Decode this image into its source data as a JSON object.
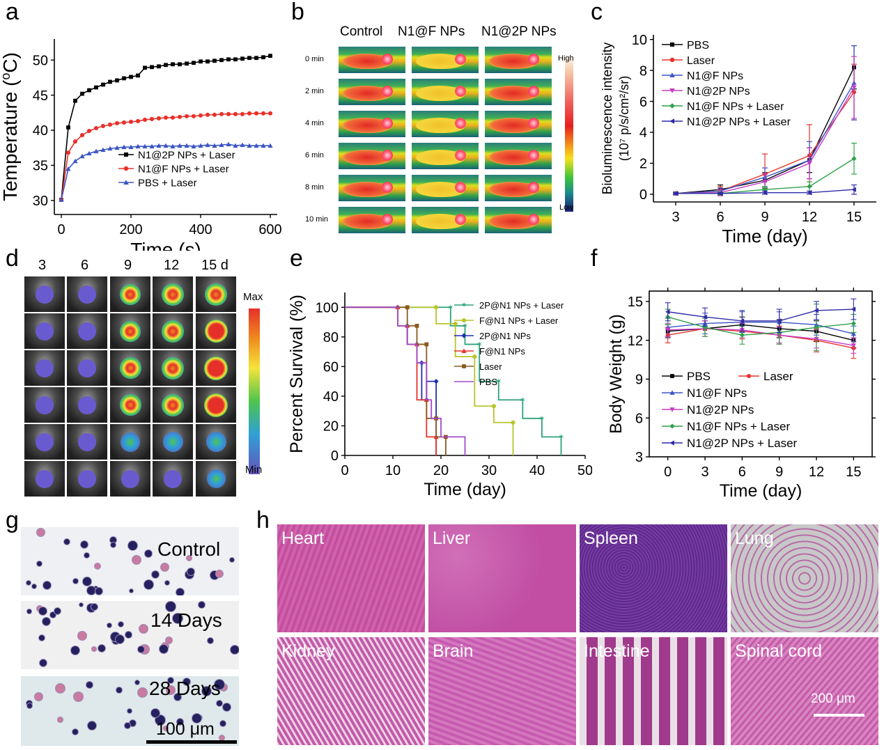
{
  "panel_letters": {
    "a": "a",
    "b": "b",
    "c": "c",
    "d": "d",
    "e": "e",
    "f": "f",
    "g": "g",
    "h": "h"
  },
  "colors": {
    "black": "#000000",
    "red": "#e8312a",
    "blue": "#3b55c5",
    "magenta": "#c43cc4",
    "green": "#2ea24a",
    "navy": "#2e2aa8",
    "brown": "#8a5a1e",
    "purple": "#a24ac8",
    "yellowgreen": "#b8c52a",
    "teal": "#2aa37a",
    "royal": "#1f2fb8",
    "he_pink": "#c65aa8"
  },
  "chart_data": [
    {
      "id": "a",
      "type": "line",
      "xlabel": "Time (s)",
      "ylabel": "Temperature (°C)",
      "xlim": [
        -20,
        620
      ],
      "ylim": [
        28,
        53
      ],
      "xticks": [
        0,
        200,
        400,
        600
      ],
      "yticks": [
        30,
        35,
        40,
        45,
        50
      ],
      "legend": "bottom-right",
      "series": [
        {
          "name": "N1@2P NPs + Laser",
          "color": "#000000",
          "marker": "square",
          "x": [
            0,
            20,
            40,
            60,
            80,
            100,
            120,
            140,
            160,
            180,
            200,
            220,
            240,
            260,
            280,
            300,
            320,
            340,
            360,
            380,
            400,
            420,
            440,
            460,
            480,
            500,
            520,
            540,
            560,
            580,
            600
          ],
          "y": [
            30.1,
            40.4,
            44.2,
            45.2,
            45.7,
            46.1,
            46.5,
            46.9,
            47.1,
            47.4,
            47.6,
            47.8,
            48.9,
            49.0,
            49.1,
            49.3,
            49.4,
            49.4,
            49.5,
            49.6,
            49.8,
            49.8,
            49.9,
            50.0,
            50.1,
            50.1,
            50.2,
            50.3,
            50.3,
            50.4,
            50.6
          ]
        },
        {
          "name": "N1@F NPs + Laser",
          "color": "#e8312a",
          "marker": "circle",
          "x": [
            0,
            20,
            40,
            60,
            80,
            100,
            120,
            140,
            160,
            180,
            200,
            220,
            240,
            260,
            280,
            300,
            320,
            340,
            360,
            380,
            400,
            420,
            440,
            460,
            480,
            500,
            520,
            540,
            560,
            580,
            600
          ],
          "y": [
            30.1,
            36.8,
            38.4,
            39.3,
            39.9,
            40.3,
            40.6,
            40.8,
            41.0,
            41.1,
            41.2,
            41.3,
            41.5,
            41.6,
            41.7,
            41.8,
            41.8,
            41.9,
            42.0,
            42.0,
            42.1,
            42.2,
            42.2,
            42.3,
            42.3,
            42.3,
            42.3,
            42.4,
            42.4,
            42.4,
            42.4
          ]
        },
        {
          "name": "PBS + Laser",
          "color": "#3b55c5",
          "marker": "triangle",
          "x": [
            0,
            20,
            40,
            60,
            80,
            100,
            120,
            140,
            160,
            180,
            200,
            220,
            240,
            260,
            280,
            300,
            320,
            340,
            360,
            380,
            400,
            420,
            440,
            460,
            480,
            500,
            520,
            540,
            560,
            580,
            600
          ],
          "y": [
            30.1,
            34.5,
            35.6,
            36.3,
            36.7,
            37.0,
            37.2,
            37.4,
            37.5,
            37.6,
            37.6,
            37.7,
            37.7,
            37.7,
            37.8,
            37.8,
            37.7,
            37.8,
            37.8,
            37.7,
            37.8,
            37.9,
            37.8,
            37.9,
            38.0,
            37.8,
            37.9,
            37.8,
            37.8,
            37.8,
            37.8
          ]
        }
      ]
    },
    {
      "id": "c",
      "type": "line",
      "xlabel": "Time (day)",
      "ylabel": "Bioluminescence intensity (10⁷ p/s/cm²/sr)",
      "ylabel_line1": "Bioluminescence intensity",
      "ylabel_line2": "(10⁷ p/s/cm²/sr)",
      "x": [
        3,
        6,
        9,
        12,
        15
      ],
      "xlim": [
        1.5,
        16.5
      ],
      "ylim": [
        -0.5,
        10.3
      ],
      "yticks": [
        0,
        2,
        4,
        6,
        8,
        10
      ],
      "legend": "top-left",
      "series": [
        {
          "name": "PBS",
          "color": "#000000",
          "marker": "square",
          "values": [
            0.05,
            0.3,
            0.9,
            2.2,
            8.2
          ],
          "err": [
            0.1,
            0.3,
            0.5,
            0.8,
            1.4
          ]
        },
        {
          "name": "Laser",
          "color": "#e8312a",
          "marker": "circle",
          "values": [
            0.05,
            0.2,
            1.3,
            2.5,
            6.6
          ],
          "err": [
            0.1,
            0.3,
            1.3,
            2.0,
            1.8
          ]
        },
        {
          "name": "N1@F NPs",
          "color": "#3b55c5",
          "marker": "triangle",
          "values": [
            0.05,
            0.2,
            1.1,
            2.2,
            7.2
          ],
          "err": [
            0.1,
            0.2,
            0.6,
            1.2,
            2.4
          ]
        },
        {
          "name": "N1@2P NPs",
          "color": "#c43cc4",
          "marker": "triangledown",
          "values": [
            0.05,
            0.1,
            0.8,
            2.0,
            6.9
          ],
          "err": [
            0.1,
            0.2,
            0.5,
            1.0,
            2.0
          ]
        },
        {
          "name": "N1@F NPs + Laser",
          "color": "#2ea24a",
          "marker": "diamond",
          "values": [
            0.05,
            0.05,
            0.3,
            0.5,
            2.3
          ],
          "err": [
            0.05,
            0.1,
            0.2,
            0.3,
            1.0
          ]
        },
        {
          "name": "N1@2P NPs + Laser",
          "color": "#2e2aa8",
          "marker": "triangleleft",
          "values": [
            0.05,
            0.05,
            0.1,
            0.1,
            0.3
          ],
          "err": [
            0.05,
            0.05,
            0.1,
            0.1,
            0.3
          ]
        }
      ]
    },
    {
      "id": "e",
      "type": "line",
      "xlabel": "Time (day)",
      "ylabel": "Percent Survival (%)",
      "xlim": [
        0,
        50
      ],
      "ylim": [
        0,
        110
      ],
      "xticks": [
        0,
        10,
        20,
        30,
        40,
        50
      ],
      "yticks": [
        0,
        20,
        40,
        60,
        80,
        100
      ],
      "legend": "top-right",
      "series": [
        {
          "name": "2P@N1 NPs + Laser",
          "color": "#2aa37a",
          "marker": "star",
          "steps": [
            [
              0,
              100
            ],
            [
              22,
              100
            ],
            [
              22,
              87.5
            ],
            [
              25,
              87.5
            ],
            [
              25,
              75
            ],
            [
              28,
              75
            ],
            [
              28,
              50
            ],
            [
              32,
              50
            ],
            [
              32,
              37.5
            ],
            [
              37,
              37.5
            ],
            [
              37,
              25
            ],
            [
              41,
              25
            ],
            [
              41,
              12.5
            ],
            [
              45,
              12.5
            ],
            [
              45,
              0
            ]
          ]
        },
        {
          "name": "F@N1 NPs  + Laser",
          "color": "#b8c52a",
          "marker": "circle",
          "steps": [
            [
              0,
              100
            ],
            [
              19,
              100
            ],
            [
              19,
              88.9
            ],
            [
              23,
              88.9
            ],
            [
              23,
              66.7
            ],
            [
              27,
              66.7
            ],
            [
              27,
              33.3
            ],
            [
              31,
              33.3
            ],
            [
              31,
              22.2
            ],
            [
              35,
              22.2
            ],
            [
              35,
              0
            ]
          ]
        },
        {
          "name": "2P@N1 NPs",
          "color": "#1f2fb8",
          "marker": "diamond",
          "steps": [
            [
              0,
              100
            ],
            [
              11,
              100
            ],
            [
              11,
              87.5
            ],
            [
              13,
              87.5
            ],
            [
              13,
              75
            ],
            [
              15,
              75
            ],
            [
              15,
              62.5
            ],
            [
              16,
              62.5
            ],
            [
              16,
              37.5
            ],
            [
              17,
              37.5
            ],
            [
              17,
              50
            ],
            [
              19,
              50
            ],
            [
              19,
              0
            ]
          ]
        },
        {
          "name": "F@N1 NPs",
          "color": "#e8312a",
          "marker": "triangle",
          "steps": [
            [
              0,
              100
            ],
            [
              11,
              100
            ],
            [
              11,
              87.5
            ],
            [
              13,
              87.5
            ],
            [
              13,
              75
            ],
            [
              15,
              75
            ],
            [
              15,
              37.5
            ],
            [
              17,
              37.5
            ],
            [
              17,
              12.5
            ],
            [
              19,
              12.5
            ],
            [
              19,
              0
            ]
          ]
        },
        {
          "name": "Laser",
          "color": "#8a5a1e",
          "marker": "square",
          "steps": [
            [
              0,
              100
            ],
            [
              13,
              100
            ],
            [
              13,
              87.5
            ],
            [
              15,
              87.5
            ],
            [
              15,
              75
            ],
            [
              17,
              75
            ],
            [
              17,
              25
            ],
            [
              19,
              25
            ],
            [
              19,
              12.5
            ],
            [
              21,
              12.5
            ],
            [
              21,
              0
            ]
          ]
        },
        {
          "name": "PBS",
          "color": "#a24ac8",
          "marker": "none",
          "steps": [
            [
              0,
              100
            ],
            [
              11,
              100
            ],
            [
              11,
              87.5
            ],
            [
              13,
              87.5
            ],
            [
              13,
              75
            ],
            [
              15,
              75
            ],
            [
              15,
              62.5
            ],
            [
              17,
              62.5
            ],
            [
              17,
              37.5
            ],
            [
              18,
              37.5
            ],
            [
              18,
              25
            ],
            [
              20,
              25
            ],
            [
              20,
              12.5
            ],
            [
              25,
              12.5
            ],
            [
              25,
              0
            ]
          ]
        }
      ]
    },
    {
      "id": "f",
      "type": "line",
      "xlabel": "Time (day)",
      "ylabel": "Body Weight (g)",
      "x": [
        0,
        3,
        6,
        9,
        12,
        15
      ],
      "xlim": [
        -1.5,
        16.5
      ],
      "ylim": [
        3,
        15.8
      ],
      "xticks": [
        0,
        3,
        6,
        9,
        12,
        15
      ],
      "yticks": [
        3,
        6,
        9,
        12,
        15
      ],
      "legend": "bottom-left",
      "series": [
        {
          "name": "PBS",
          "color": "#000000",
          "marker": "square",
          "values": [
            12.7,
            12.9,
            13.2,
            12.9,
            12.7,
            12.0
          ],
          "err": [
            0.5,
            0.6,
            0.6,
            0.7,
            0.8,
            0.6
          ]
        },
        {
          "name": "Laser",
          "color": "#e8312a",
          "marker": "circle",
          "values": [
            12.4,
            12.9,
            12.7,
            12.4,
            12.0,
            11.4
          ],
          "err": [
            0.6,
            0.6,
            0.6,
            0.7,
            0.9,
            0.8
          ]
        },
        {
          "name": "N1@F NPs",
          "color": "#3b55c5",
          "marker": "triangle",
          "values": [
            13.0,
            13.3,
            13.4,
            13.4,
            13.2,
            12.5
          ],
          "err": [
            0.7,
            0.8,
            0.8,
            0.8,
            0.8,
            0.6
          ]
        },
        {
          "name": "N1@2P NPs",
          "color": "#c43cc4",
          "marker": "triangledown",
          "values": [
            12.8,
            12.9,
            12.8,
            12.4,
            12.1,
            11.6
          ],
          "err": [
            0.5,
            0.6,
            0.6,
            0.6,
            0.7,
            0.6
          ]
        },
        {
          "name": "N1@F NPs + Laser",
          "color": "#2ea24a",
          "marker": "diamond",
          "values": [
            13.8,
            13.0,
            12.4,
            12.6,
            13.0,
            13.3
          ],
          "err": [
            0.6,
            0.7,
            0.7,
            0.9,
            1.8,
            0.7
          ]
        },
        {
          "name": "N1@2P NPs + Laser",
          "color": "#2e2aa8",
          "marker": "triangleleft",
          "values": [
            14.2,
            13.8,
            13.5,
            13.5,
            14.3,
            14.4
          ],
          "err": [
            0.7,
            0.7,
            0.8,
            0.9,
            0.7,
            0.8
          ]
        }
      ]
    }
  ],
  "panel_b": {
    "columns": [
      "Control",
      "N1@F NPs",
      "N1@2P NPs"
    ],
    "rows": [
      "0 min",
      "2 min",
      "4 min",
      "6 min",
      "8 min",
      "10 min"
    ],
    "scale_high": "High",
    "scale_low": "Low"
  },
  "panel_d": {
    "columns": [
      "3",
      "6",
      "9",
      "12",
      "15 d"
    ],
    "scale_max": "Max",
    "scale_min": "Min"
  },
  "panel_g": {
    "labels": [
      "Control",
      "14 Days",
      "28 Days"
    ],
    "scalebar": "100 μm"
  },
  "panel_h": {
    "labels": [
      "Heart",
      "Liver",
      "Spleen",
      "Lung",
      "Kidney",
      "Brain",
      "Intestine",
      "Spinal cord"
    ],
    "scalebar": "200 μm"
  }
}
